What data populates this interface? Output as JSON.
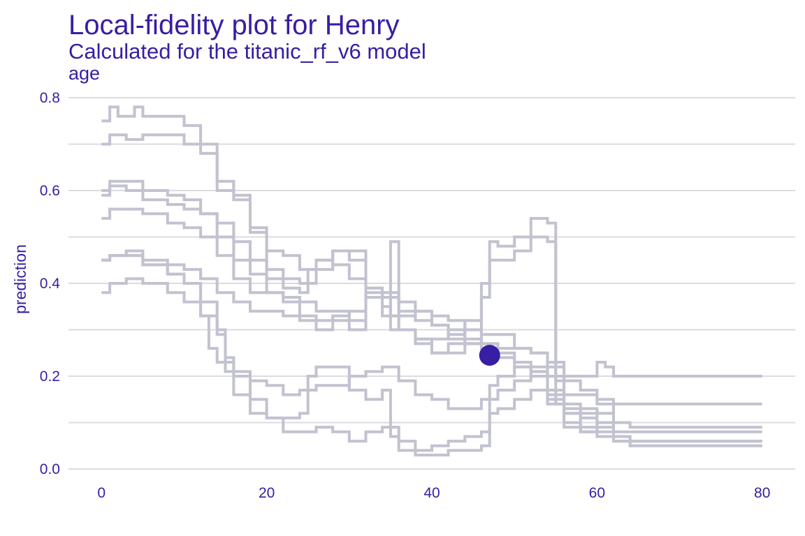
{
  "title": "Local-fidelity plot for Henry",
  "subtitle": "Calculated for the titanic_rf_v6 model",
  "facet_label": "age",
  "colors": {
    "text": "#371ea3",
    "line": "#c2c2d0",
    "point": "#371ea3",
    "grid": "#dcdce0"
  },
  "chart_data": {
    "type": "line",
    "xlabel": "",
    "ylabel": "prediction",
    "xlim": [
      -4,
      84
    ],
    "ylim": [
      0,
      0.8
    ],
    "x_ticks": [
      0,
      20,
      40,
      60,
      80
    ],
    "x_tick_labels": [
      "0",
      "20",
      "40",
      "60",
      "80"
    ],
    "y_ticks": [
      0,
      0.2,
      0.4,
      0.6,
      0.8
    ],
    "y_tick_labels": [
      "0.0",
      "0.2",
      "0.4",
      "0.6",
      "0.8"
    ],
    "grid": true,
    "observation": {
      "x": 47,
      "y": 0.245
    },
    "series": [
      {
        "points": [
          [
            0,
            0.75
          ],
          [
            1,
            0.78
          ],
          [
            2,
            0.76
          ],
          [
            4,
            0.78
          ],
          [
            5,
            0.76
          ],
          [
            10,
            0.74
          ],
          [
            12,
            0.7
          ],
          [
            14,
            0.62
          ],
          [
            16,
            0.59
          ],
          [
            18,
            0.52
          ],
          [
            20,
            0.47
          ],
          [
            22,
            0.46
          ],
          [
            24,
            0.43
          ],
          [
            26,
            0.45
          ],
          [
            28,
            0.44
          ],
          [
            30,
            0.41
          ],
          [
            32,
            0.37
          ],
          [
            34,
            0.37
          ],
          [
            36,
            0.34
          ],
          [
            38,
            0.32
          ],
          [
            40,
            0.31
          ],
          [
            42,
            0.3
          ],
          [
            44,
            0.28
          ],
          [
            46,
            0.27
          ],
          [
            48,
            0.25
          ],
          [
            50,
            0.23
          ],
          [
            52,
            0.22
          ],
          [
            54,
            0.2
          ],
          [
            56,
            0.13
          ],
          [
            58,
            0.12
          ],
          [
            60,
            0.1
          ],
          [
            62,
            0.07
          ],
          [
            64,
            0.06
          ],
          [
            80,
            0.06
          ]
        ]
      },
      {
        "points": [
          [
            0,
            0.7
          ],
          [
            1,
            0.72
          ],
          [
            3,
            0.71
          ],
          [
            5,
            0.72
          ],
          [
            10,
            0.7
          ],
          [
            12,
            0.68
          ],
          [
            14,
            0.6
          ],
          [
            16,
            0.58
          ],
          [
            18,
            0.51
          ],
          [
            20,
            0.43
          ],
          [
            22,
            0.41
          ],
          [
            24,
            0.4
          ],
          [
            26,
            0.43
          ],
          [
            28,
            0.47
          ],
          [
            30,
            0.45
          ],
          [
            32,
            0.39
          ],
          [
            34,
            0.38
          ],
          [
            36,
            0.36
          ],
          [
            38,
            0.34
          ],
          [
            40,
            0.33
          ],
          [
            42,
            0.32
          ],
          [
            44,
            0.3
          ],
          [
            46,
            0.29
          ],
          [
            48,
            0.29
          ],
          [
            50,
            0.26
          ],
          [
            52,
            0.25
          ],
          [
            54,
            0.23
          ],
          [
            56,
            0.12
          ],
          [
            58,
            0.11
          ],
          [
            60,
            0.09
          ],
          [
            62,
            0.07
          ],
          [
            64,
            0.06
          ],
          [
            80,
            0.06
          ]
        ]
      },
      {
        "points": [
          [
            0,
            0.6
          ],
          [
            1,
            0.62
          ],
          [
            3,
            0.62
          ],
          [
            5,
            0.6
          ],
          [
            8,
            0.59
          ],
          [
            10,
            0.58
          ],
          [
            12,
            0.55
          ],
          [
            14,
            0.53
          ],
          [
            16,
            0.49
          ],
          [
            18,
            0.45
          ],
          [
            20,
            0.41
          ],
          [
            22,
            0.39
          ],
          [
            24,
            0.38
          ],
          [
            25,
            0.43
          ],
          [
            26,
            0.45
          ],
          [
            28,
            0.47
          ],
          [
            30,
            0.47
          ],
          [
            32,
            0.37
          ],
          [
            34,
            0.33
          ],
          [
            36,
            0.3
          ],
          [
            38,
            0.28
          ],
          [
            40,
            0.25
          ],
          [
            42,
            0.25
          ],
          [
            44,
            0.27
          ],
          [
            46,
            0.4
          ],
          [
            47,
            0.45
          ],
          [
            48,
            0.45
          ],
          [
            50,
            0.47
          ],
          [
            52,
            0.5
          ],
          [
            54,
            0.49
          ],
          [
            55,
            0.14
          ],
          [
            58,
            0.13
          ],
          [
            60,
            0.12
          ],
          [
            62,
            0.08
          ],
          [
            64,
            0.08
          ],
          [
            80,
            0.08
          ]
        ]
      },
      {
        "points": [
          [
            0,
            0.59
          ],
          [
            1,
            0.61
          ],
          [
            3,
            0.6
          ],
          [
            5,
            0.58
          ],
          [
            8,
            0.57
          ],
          [
            10,
            0.56
          ],
          [
            12,
            0.55
          ],
          [
            14,
            0.5
          ],
          [
            16,
            0.45
          ],
          [
            18,
            0.42
          ],
          [
            20,
            0.38
          ],
          [
            22,
            0.36
          ],
          [
            24,
            0.36
          ],
          [
            26,
            0.34
          ],
          [
            28,
            0.34
          ],
          [
            30,
            0.32
          ],
          [
            32,
            0.38
          ],
          [
            34,
            0.37
          ],
          [
            35,
            0.3
          ],
          [
            38,
            0.27
          ],
          [
            40,
            0.25
          ],
          [
            42,
            0.27
          ],
          [
            44,
            0.32
          ],
          [
            46,
            0.37
          ],
          [
            47,
            0.49
          ],
          [
            48,
            0.48
          ],
          [
            50,
            0.5
          ],
          [
            52,
            0.54
          ],
          [
            54,
            0.53
          ],
          [
            55,
            0.19
          ],
          [
            58,
            0.17
          ],
          [
            60,
            0.14
          ],
          [
            62,
            0.1
          ],
          [
            64,
            0.09
          ],
          [
            80,
            0.09
          ]
        ]
      },
      {
        "points": [
          [
            0,
            0.54
          ],
          [
            1,
            0.56
          ],
          [
            3,
            0.56
          ],
          [
            5,
            0.55
          ],
          [
            8,
            0.53
          ],
          [
            10,
            0.52
          ],
          [
            12,
            0.5
          ],
          [
            14,
            0.46
          ],
          [
            16,
            0.41
          ],
          [
            18,
            0.38
          ],
          [
            20,
            0.38
          ],
          [
            22,
            0.37
          ],
          [
            24,
            0.33
          ],
          [
            26,
            0.32
          ],
          [
            28,
            0.32
          ],
          [
            30,
            0.3
          ],
          [
            32,
            0.37
          ],
          [
            34,
            0.35
          ],
          [
            35,
            0.33
          ],
          [
            38,
            0.34
          ],
          [
            40,
            0.31
          ],
          [
            42,
            0.28
          ],
          [
            44,
            0.27
          ],
          [
            46,
            0.27
          ],
          [
            48,
            0.26
          ],
          [
            50,
            0.26
          ],
          [
            52,
            0.25
          ],
          [
            54,
            0.22
          ],
          [
            56,
            0.2
          ],
          [
            58,
            0.2
          ],
          [
            60,
            0.23
          ],
          [
            61,
            0.22
          ],
          [
            62,
            0.2
          ],
          [
            64,
            0.2
          ],
          [
            80,
            0.2
          ]
        ]
      },
      {
        "points": [
          [
            0,
            0.45
          ],
          [
            1,
            0.46
          ],
          [
            3,
            0.47
          ],
          [
            5,
            0.45
          ],
          [
            8,
            0.44
          ],
          [
            10,
            0.43
          ],
          [
            12,
            0.41
          ],
          [
            14,
            0.38
          ],
          [
            16,
            0.36
          ],
          [
            18,
            0.34
          ],
          [
            20,
            0.34
          ],
          [
            22,
            0.33
          ],
          [
            24,
            0.32
          ],
          [
            26,
            0.3
          ],
          [
            28,
            0.33
          ],
          [
            30,
            0.34
          ],
          [
            32,
            0.39
          ],
          [
            34,
            0.37
          ],
          [
            35,
            0.49
          ],
          [
            36,
            0.3
          ],
          [
            38,
            0.28
          ],
          [
            40,
            0.28
          ],
          [
            42,
            0.29
          ],
          [
            44,
            0.27
          ],
          [
            46,
            0.26
          ],
          [
            48,
            0.24
          ],
          [
            50,
            0.22
          ],
          [
            52,
            0.21
          ],
          [
            54,
            0.17
          ],
          [
            56,
            0.16
          ],
          [
            58,
            0.16
          ],
          [
            60,
            0.15
          ],
          [
            62,
            0.14
          ],
          [
            64,
            0.14
          ],
          [
            80,
            0.14
          ]
        ]
      },
      {
        "points": [
          [
            0,
            0.45
          ],
          [
            1,
            0.46
          ],
          [
            3,
            0.46
          ],
          [
            5,
            0.44
          ],
          [
            8,
            0.42
          ],
          [
            10,
            0.4
          ],
          [
            12,
            0.36
          ],
          [
            14,
            0.29
          ],
          [
            15,
            0.24
          ],
          [
            16,
            0.21
          ],
          [
            18,
            0.19
          ],
          [
            20,
            0.18
          ],
          [
            22,
            0.16
          ],
          [
            24,
            0.17
          ],
          [
            26,
            0.18
          ],
          [
            28,
            0.18
          ],
          [
            30,
            0.2
          ],
          [
            32,
            0.21
          ],
          [
            34,
            0.22
          ],
          [
            36,
            0.19
          ],
          [
            38,
            0.16
          ],
          [
            40,
            0.15
          ],
          [
            42,
            0.13
          ],
          [
            44,
            0.13
          ],
          [
            46,
            0.15
          ],
          [
            48,
            0.17
          ],
          [
            50,
            0.19
          ],
          [
            52,
            0.21
          ],
          [
            54,
            0.15
          ],
          [
            56,
            0.12
          ],
          [
            58,
            0.09
          ],
          [
            60,
            0.08
          ],
          [
            62,
            0.07
          ],
          [
            64,
            0.06
          ],
          [
            80,
            0.06
          ]
        ]
      },
      {
        "points": [
          [
            0,
            0.38
          ],
          [
            1,
            0.4
          ],
          [
            3,
            0.41
          ],
          [
            5,
            0.4
          ],
          [
            8,
            0.38
          ],
          [
            10,
            0.36
          ],
          [
            12,
            0.33
          ],
          [
            14,
            0.3
          ],
          [
            15,
            0.21
          ],
          [
            16,
            0.16
          ],
          [
            18,
            0.12
          ],
          [
            20,
            0.11
          ],
          [
            22,
            0.11
          ],
          [
            24,
            0.12
          ],
          [
            25,
            0.2
          ],
          [
            26,
            0.22
          ],
          [
            28,
            0.22
          ],
          [
            30,
            0.17
          ],
          [
            32,
            0.15
          ],
          [
            34,
            0.17
          ],
          [
            35,
            0.09
          ],
          [
            36,
            0.06
          ],
          [
            38,
            0.04
          ],
          [
            40,
            0.05
          ],
          [
            42,
            0.06
          ],
          [
            44,
            0.07
          ],
          [
            46,
            0.08
          ],
          [
            47,
            0.18
          ],
          [
            48,
            0.2
          ],
          [
            50,
            0.22
          ],
          [
            52,
            0.2
          ],
          [
            54,
            0.16
          ],
          [
            56,
            0.1
          ],
          [
            58,
            0.08
          ],
          [
            60,
            0.07
          ],
          [
            62,
            0.06
          ],
          [
            64,
            0.05
          ],
          [
            80,
            0.05
          ]
        ]
      },
      {
        "points": [
          [
            0,
            0.45
          ],
          [
            1,
            0.46
          ],
          [
            3,
            0.46
          ],
          [
            5,
            0.44
          ],
          [
            8,
            0.42
          ],
          [
            10,
            0.4
          ],
          [
            12,
            0.33
          ],
          [
            13,
            0.26
          ],
          [
            14,
            0.23
          ],
          [
            16,
            0.2
          ],
          [
            18,
            0.15
          ],
          [
            20,
            0.11
          ],
          [
            22,
            0.08
          ],
          [
            24,
            0.08
          ],
          [
            26,
            0.09
          ],
          [
            28,
            0.08
          ],
          [
            30,
            0.06
          ],
          [
            32,
            0.08
          ],
          [
            34,
            0.09
          ],
          [
            35,
            0.07
          ],
          [
            36,
            0.04
          ],
          [
            38,
            0.03
          ],
          [
            40,
            0.03
          ],
          [
            42,
            0.04
          ],
          [
            44,
            0.04
          ],
          [
            46,
            0.05
          ],
          [
            47,
            0.12
          ],
          [
            48,
            0.13
          ],
          [
            50,
            0.15
          ],
          [
            52,
            0.17
          ],
          [
            54,
            0.14
          ],
          [
            56,
            0.09
          ],
          [
            58,
            0.08
          ],
          [
            60,
            0.07
          ],
          [
            62,
            0.06
          ],
          [
            64,
            0.05
          ],
          [
            80,
            0.05
          ]
        ]
      }
    ]
  }
}
